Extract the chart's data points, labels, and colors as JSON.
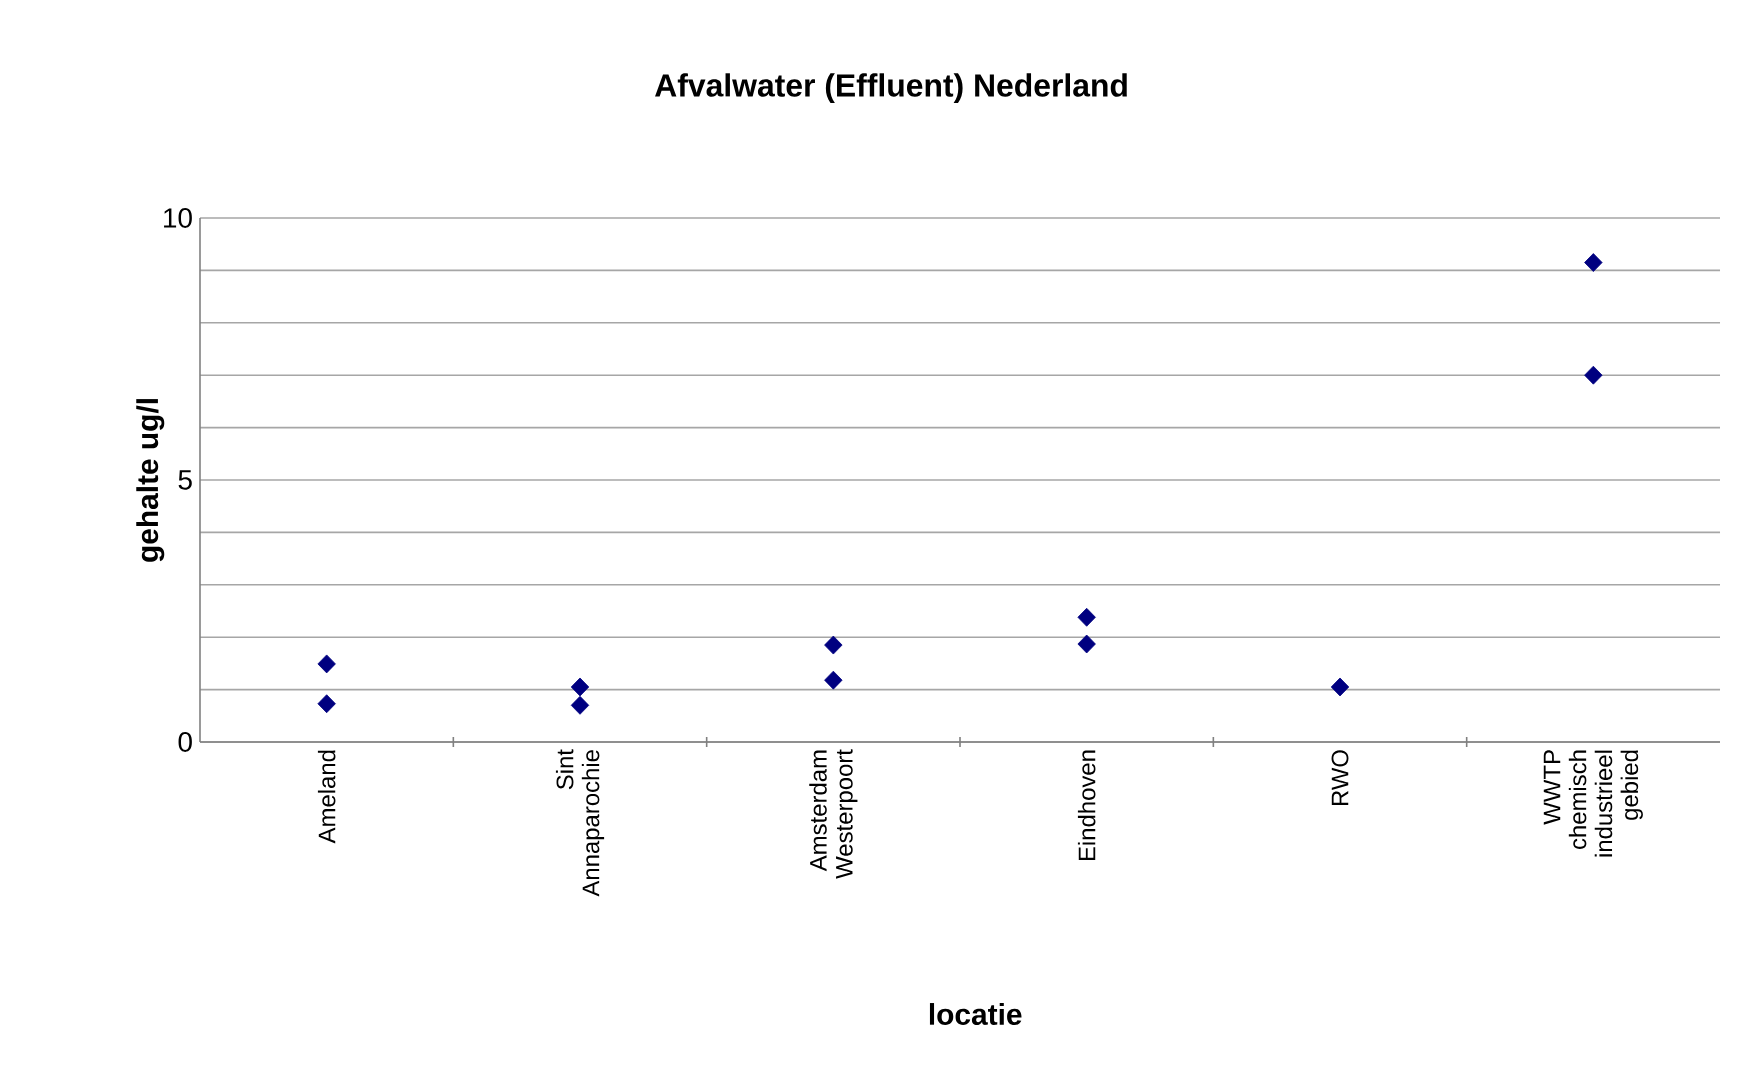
{
  "chart_data": {
    "type": "scatter",
    "title": "Afvalwater (Effluent) Nederland",
    "xlabel": "locatie",
    "ylabel": "gehalte ug/l",
    "categories": [
      "Ameland",
      "Sint Annaparochie",
      "Amsterdam Westerpoort",
      "Eindhoven",
      "RWO",
      "WWTP chemisch industrieel gebied"
    ],
    "series": [
      {
        "color": "#000080",
        "values": [
          1.49,
          1.05,
          1.85,
          2.38,
          1.05,
          9.15
        ]
      },
      {
        "color": "#000080",
        "values": [
          0.73,
          0.7,
          1.18,
          1.87,
          null,
          7.0
        ]
      }
    ],
    "ylim": [
      0,
      10
    ],
    "yticks": [
      0,
      {
        "value": 1,
        "label": null
      },
      {
        "value": 2,
        "label": null
      },
      {
        "value": 3,
        "label": null
      },
      {
        "value": 4,
        "label": null
      },
      5,
      {
        "value": 6,
        "label": null
      },
      {
        "value": 7,
        "label": null
      },
      {
        "value": 8,
        "label": null
      },
      {
        "value": 9,
        "label": null
      },
      10
    ],
    "grid": "y",
    "marker": "diamond"
  }
}
